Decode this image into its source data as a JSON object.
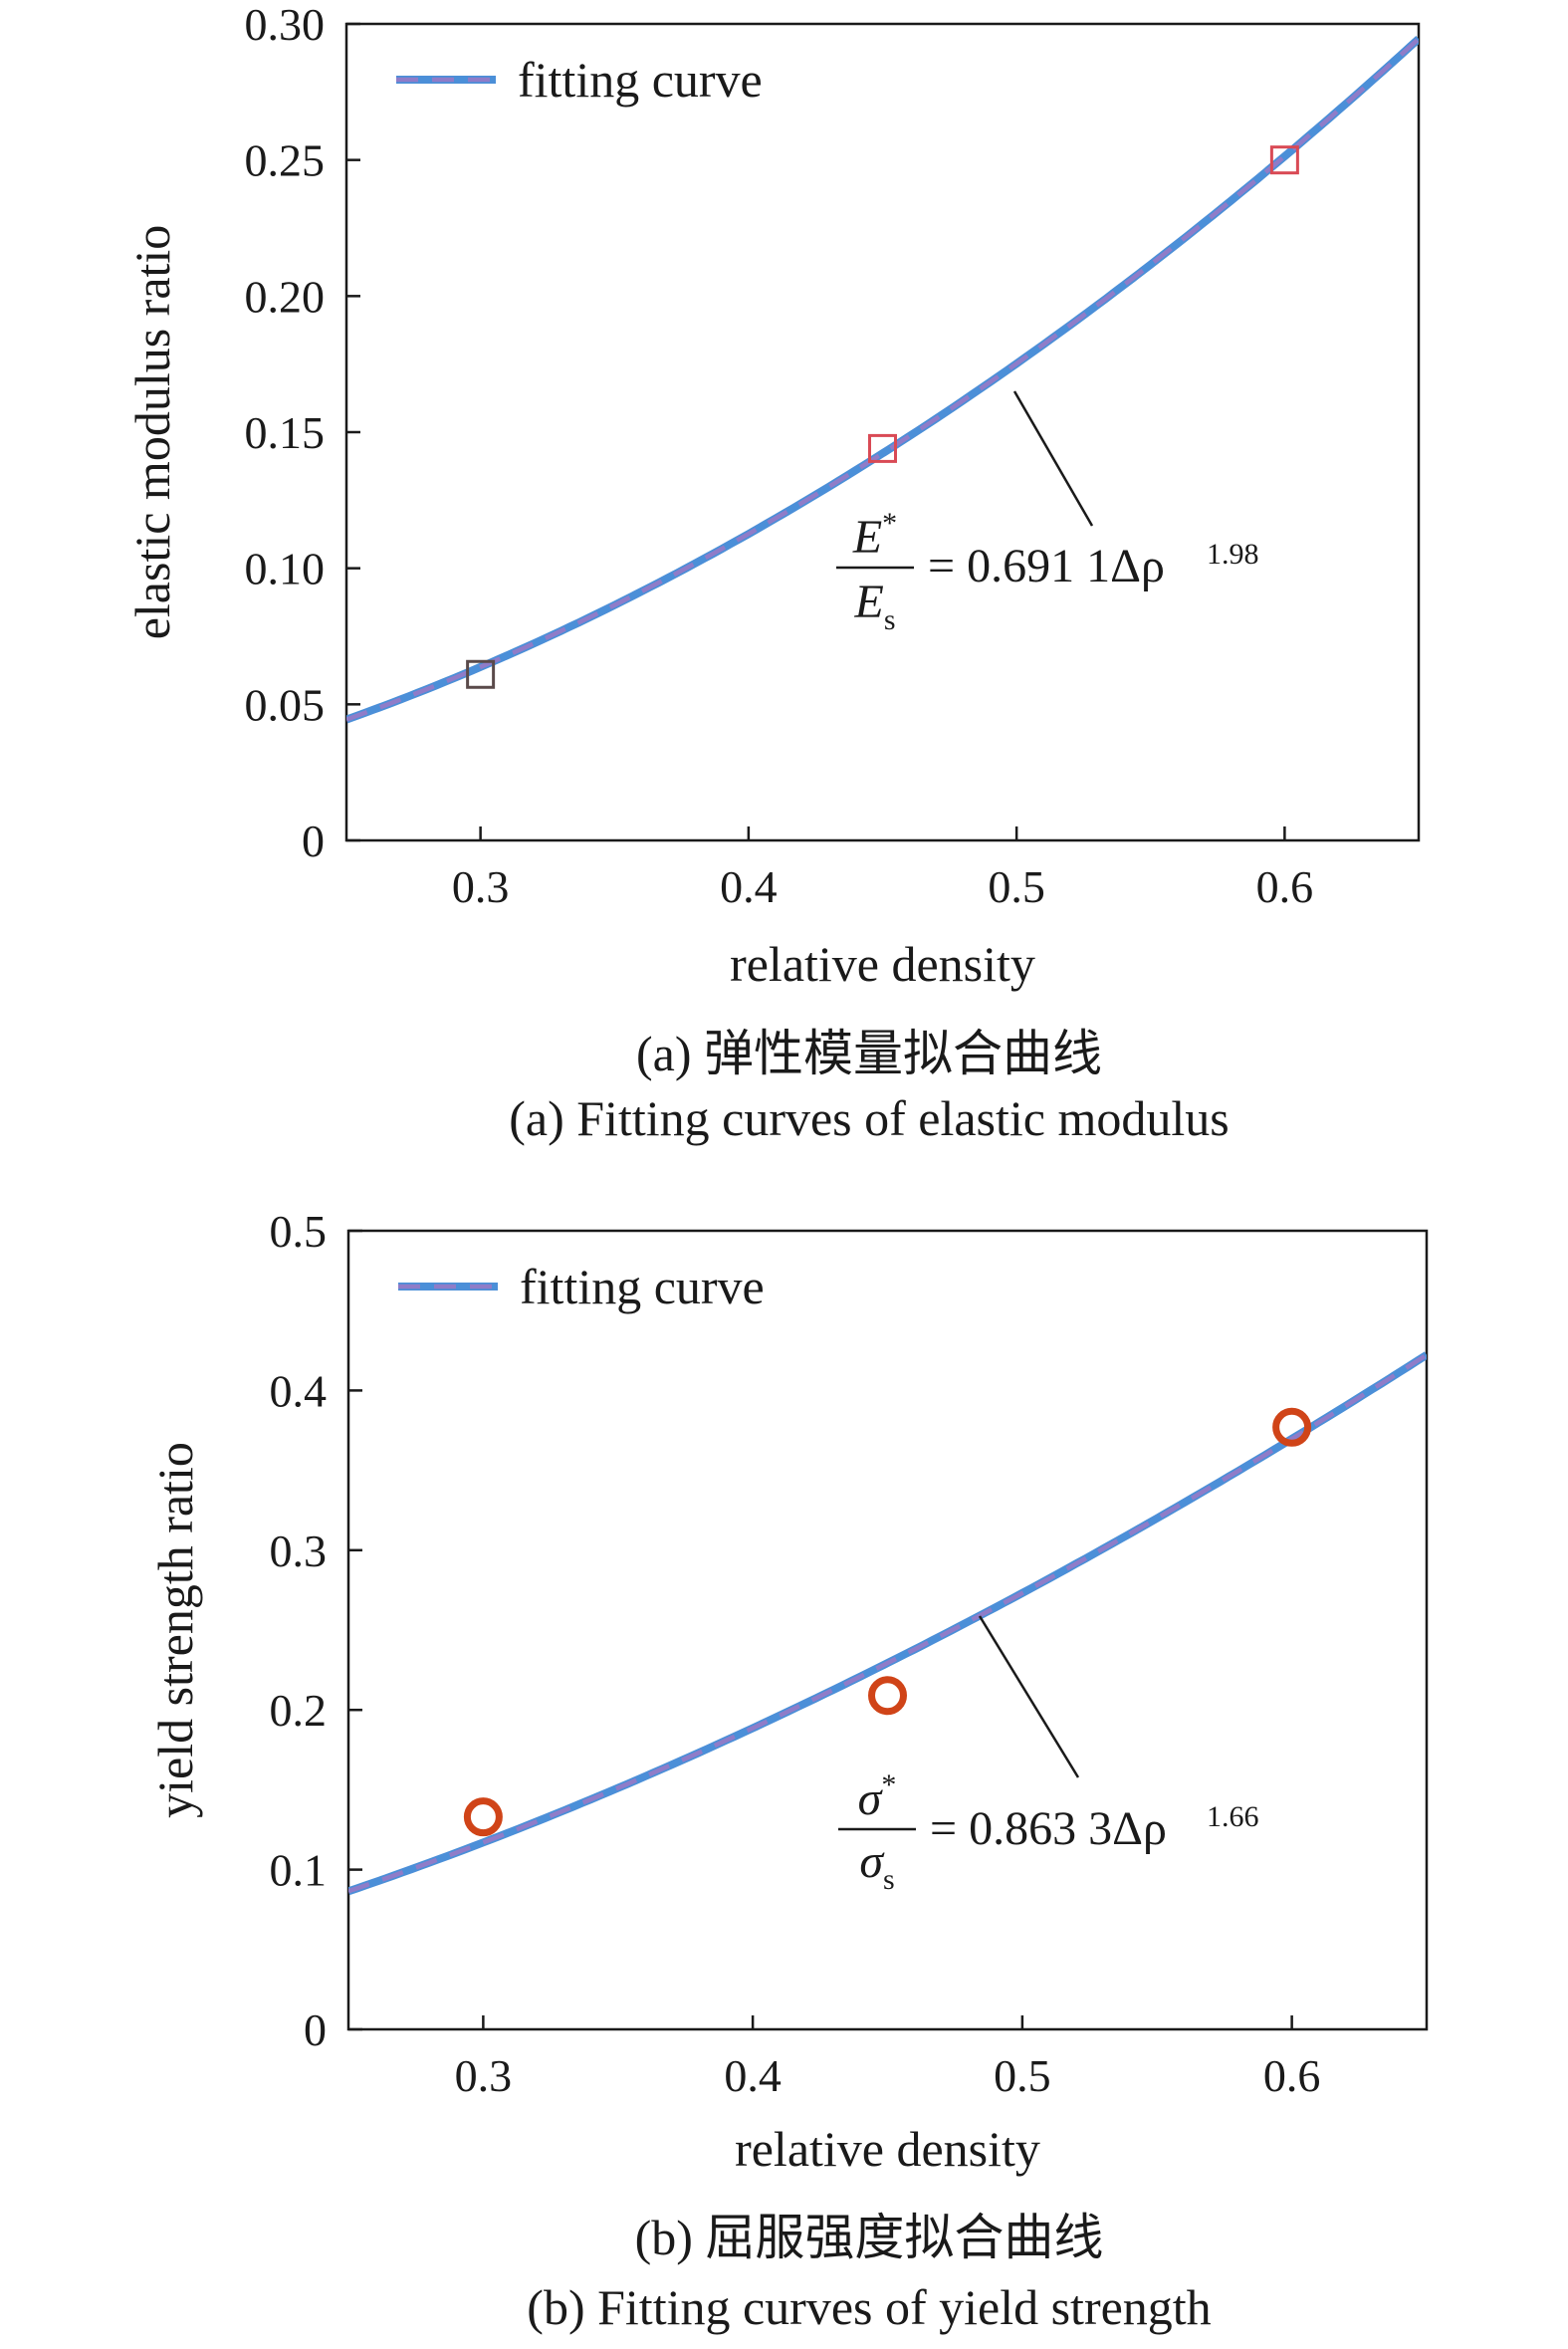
{
  "chart_data": [
    {
      "type": "line",
      "panel": "a",
      "xlabel": "relative density",
      "ylabel": "elastic modulus ratio",
      "xlim": [
        0.25,
        0.65
      ],
      "ylim": [
        0,
        0.3
      ],
      "xticks": [
        "0.3",
        "0.4",
        "0.5",
        "0.6"
      ],
      "yticks": [
        "0",
        "0.05",
        "0.10",
        "0.15",
        "0.20",
        "0.25",
        "0.30"
      ],
      "legend": {
        "label": "fitting curve",
        "position": "top-left"
      },
      "fit": {
        "coefficient": 0.6911,
        "exponent": 1.98
      },
      "markers": "square",
      "points": [
        {
          "x": 0.3,
          "y": 0.061,
          "color": "#5a4a4a"
        },
        {
          "x": 0.45,
          "y": 0.144,
          "color": "#d94a55"
        },
        {
          "x": 0.6,
          "y": 0.25,
          "color": "#d94a55"
        }
      ],
      "equation": {
        "num_main": "E",
        "num_sup": "*",
        "den_main": "E",
        "den_sub": "s",
        "rhs": "= 0.691 1Δρ",
        "rhs_sup": "1.98"
      },
      "caption_cn": "(a) 弹性模量拟合曲线",
      "caption_en": "(a) Fitting curves of elastic modulus"
    },
    {
      "type": "line",
      "panel": "b",
      "xlabel": "relative density",
      "ylabel": "yield strength ratio",
      "xlim": [
        0.25,
        0.65
      ],
      "ylim": [
        0,
        0.5
      ],
      "xticks": [
        "0.3",
        "0.4",
        "0.5",
        "0.6"
      ],
      "yticks": [
        "0",
        "0.1",
        "0.2",
        "0.3",
        "0.4",
        "0.5"
      ],
      "legend": {
        "label": "fitting curve",
        "position": "top-left"
      },
      "fit": {
        "coefficient": 0.8633,
        "exponent": 1.66
      },
      "markers": "circle",
      "points": [
        {
          "x": 0.3,
          "y": 0.133,
          "color": "#d04418"
        },
        {
          "x": 0.45,
          "y": 0.209,
          "color": "#d04418"
        },
        {
          "x": 0.6,
          "y": 0.377,
          "color": "#d04418"
        }
      ],
      "equation": {
        "num_main": "σ",
        "num_sup": "*",
        "den_main": "σ",
        "den_sub": "s",
        "rhs": "= 0.863 3Δρ",
        "rhs_sup": "1.66"
      },
      "caption_cn": "(b) 屈服强度拟合曲线",
      "caption_en": "(b) Fitting curves of yield strength"
    }
  ],
  "colors": {
    "fit_solid": "#4b8fd8",
    "fit_dash": "#8f7cc8",
    "axis": "#1a1a1a"
  }
}
